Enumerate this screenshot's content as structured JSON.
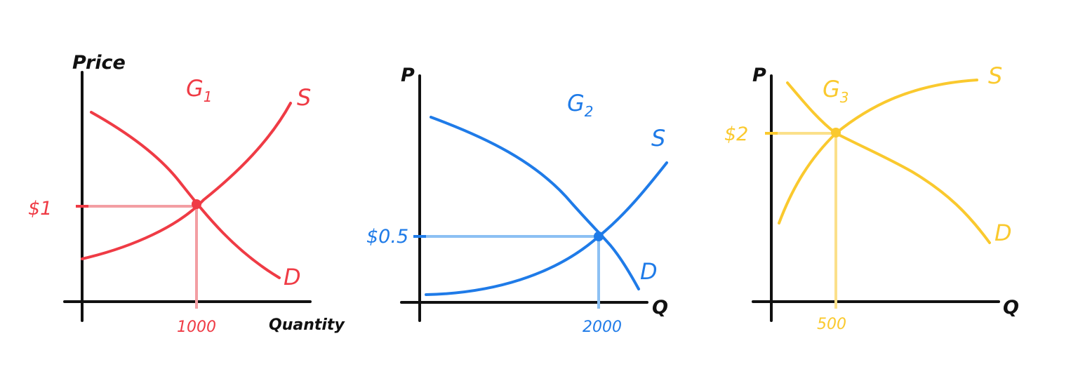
{
  "chart_data": [
    {
      "type": "line",
      "title": "G1",
      "color": "#ef3b45",
      "guide_color": "#f39ea3",
      "xlabel": "Quantity",
      "ylabel": "Price",
      "series": [
        {
          "name": "S",
          "shape": "increasing-convex"
        },
        {
          "name": "D",
          "shape": "decreasing"
        }
      ],
      "equilibrium": {
        "price_label": "$1",
        "quantity_label": "1000"
      }
    },
    {
      "type": "line",
      "title": "G2",
      "color": "#1f7be8",
      "guide_color": "#8cc0f3",
      "xlabel": "Q",
      "ylabel": "P",
      "series": [
        {
          "name": "S",
          "shape": "increasing-convex"
        },
        {
          "name": "D",
          "shape": "decreasing"
        }
      ],
      "equilibrium": {
        "price_label": "$0.5",
        "quantity_label": "2000"
      }
    },
    {
      "type": "line",
      "title": "G3",
      "color": "#fac92e",
      "guide_color": "#fbe08a",
      "xlabel": "Q",
      "ylabel": "P",
      "series": [
        {
          "name": "S",
          "shape": "increasing-concave"
        },
        {
          "name": "D",
          "shape": "decreasing"
        }
      ],
      "equilibrium": {
        "price_label": "$2",
        "quantity_label": "500"
      }
    }
  ]
}
